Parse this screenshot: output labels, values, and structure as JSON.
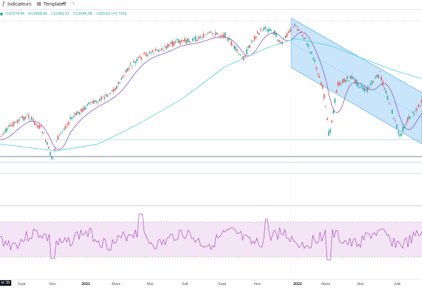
{
  "toolbar": {
    "indicators_label": "Indicateurs",
    "templates_label": "Templates",
    "undo_icon": "undo-icon",
    "redo_icon": "redo-icon"
  },
  "ohlc": {
    "open": "O12374.46",
    "high": "H12698.56",
    "low": "L12365.61",
    "close": "C12646.98",
    "change": "+333.62 (+2.71%)"
  },
  "time_label": "te '39",
  "colors": {
    "up": "#26a69a",
    "down": "#ef5350",
    "ma_purple": "#7e57c2",
    "ma_teal": "#4dd0e1",
    "channel_fill": "#bbdefb",
    "channel_line": "#64b5f6",
    "rsi_band": "#f3e5f5",
    "rsi_line": "#ab47bc"
  },
  "xaxis": [
    {
      "label": "Sept",
      "bold": false
    },
    {
      "label": "Nov",
      "bold": false
    },
    {
      "label": "2021",
      "bold": true
    },
    {
      "label": "Mars",
      "bold": false
    },
    {
      "label": "Mai",
      "bold": false
    },
    {
      "label": "Juill",
      "bold": false
    },
    {
      "label": "Sept",
      "bold": false
    },
    {
      "label": "Nov",
      "bold": false
    },
    {
      "label": "2022",
      "bold": true
    },
    {
      "label": "Mars",
      "bold": false
    },
    {
      "label": "Mai",
      "bold": false
    },
    {
      "label": "Juill",
      "bold": false
    }
  ]
}
